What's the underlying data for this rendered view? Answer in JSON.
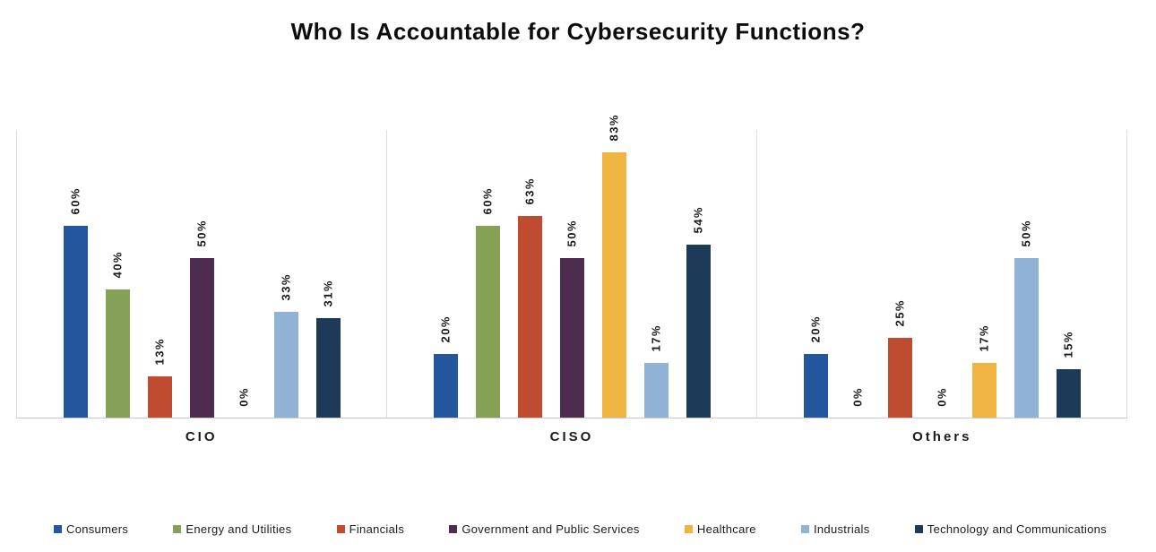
{
  "title": "Who Is Accountable for Cybersecurity Functions?",
  "chart_data": {
    "type": "bar",
    "title": "Who Is Accountable for Cybersecurity Functions?",
    "categories": [
      "CIO",
      "CISO",
      "Others"
    ],
    "series": [
      {
        "name": "Consumers",
        "color": "#23569D",
        "values": [
          60,
          20,
          20
        ]
      },
      {
        "name": "Energy and Utilities",
        "color": "#84A155",
        "values": [
          40,
          60,
          0
        ]
      },
      {
        "name": "Financials",
        "color": "#BF4B30",
        "values": [
          13,
          63,
          25
        ]
      },
      {
        "name": "Government and Public Services",
        "color": "#4E2C50",
        "values": [
          50,
          50,
          0
        ]
      },
      {
        "name": "Healthcare",
        "color": "#F0B441",
        "values": [
          0,
          83,
          17
        ]
      },
      {
        "name": "Industrials",
        "color": "#8FB2D5",
        "values": [
          33,
          17,
          50
        ]
      },
      {
        "name": "Technology and Communications",
        "color": "#1E3A59",
        "values": [
          31,
          54,
          15
        ]
      }
    ],
    "label_format": "{value}%",
    "data_label_rotation": -90,
    "ylim": [
      0,
      90
    ],
    "grid": false,
    "y_axis_visible": false,
    "legend_position": "bottom",
    "axis_line_color": "#c9c9c9",
    "panel_line_color": "#dedede"
  }
}
